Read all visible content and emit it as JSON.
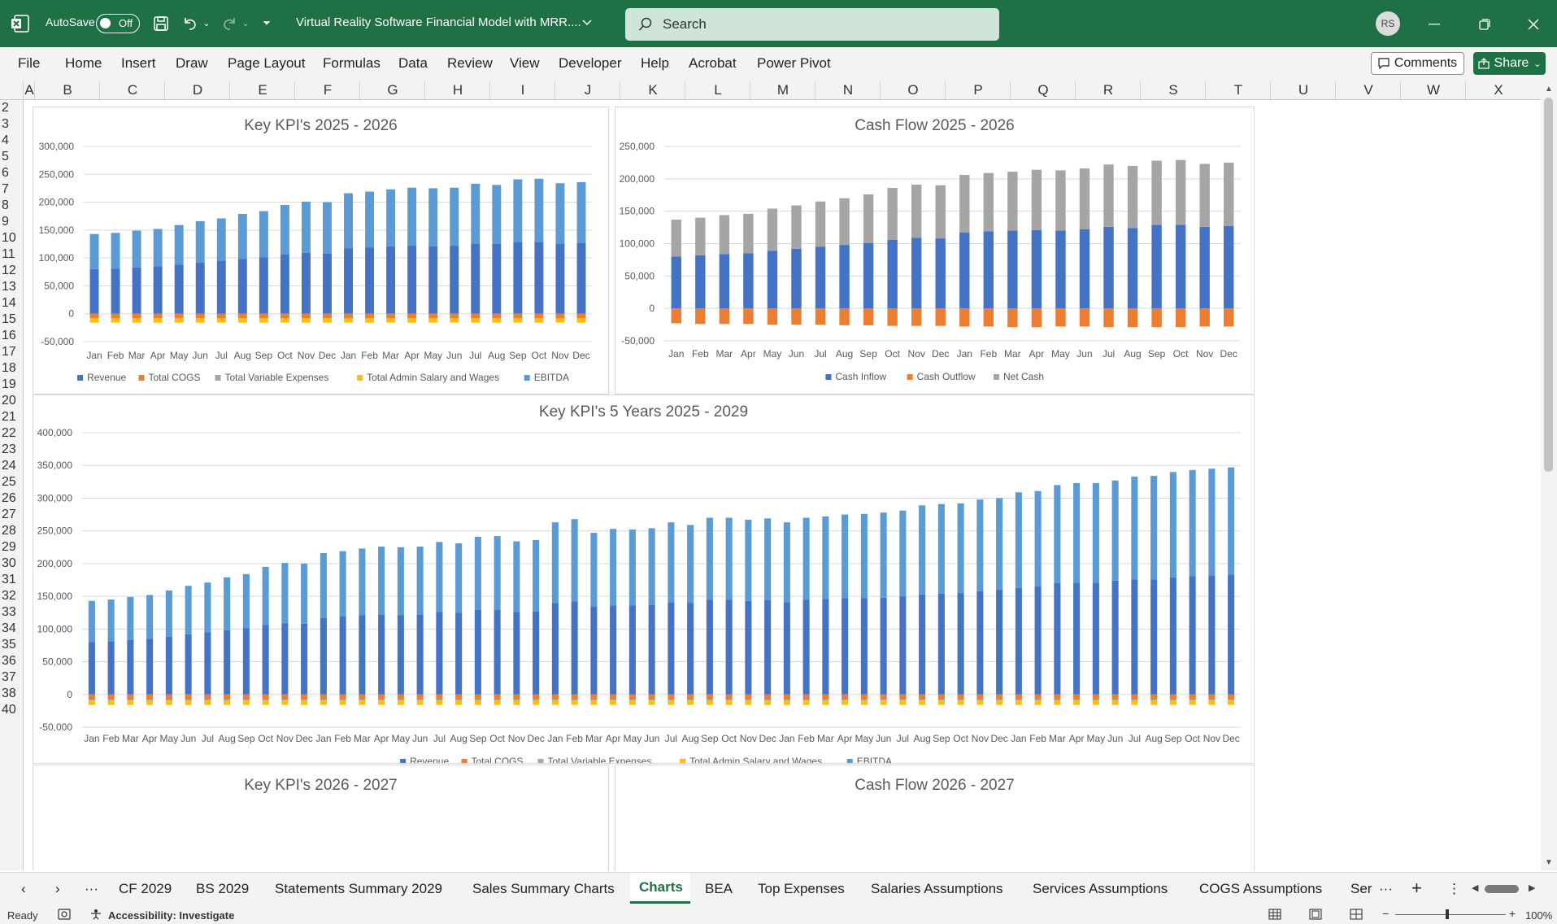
{
  "titlebar": {
    "autosave_label": "AutoSave",
    "autosave_state": "Off",
    "file_title": "Virtual Reality Software Financial Model with MRR....",
    "search_placeholder": "Search",
    "avatar_initials": "RS",
    "accent_color": "#1f7145"
  },
  "menu": {
    "items": [
      "File",
      "Home",
      "Insert",
      "Draw",
      "Page Layout",
      "Formulas",
      "Data",
      "Review",
      "View",
      "Developer",
      "Help",
      "Acrobat",
      "Power Pivot"
    ],
    "comments_label": "Comments",
    "share_label": "Share"
  },
  "columns": [
    "A",
    "B",
    "C",
    "D",
    "E",
    "F",
    "G",
    "H",
    "I",
    "J",
    "K",
    "L",
    "M",
    "N",
    "O",
    "P",
    "Q",
    "R",
    "S",
    "T",
    "U",
    "V",
    "W",
    "X"
  ],
  "rows": [
    "2",
    "3",
    "4",
    "5",
    "6",
    "7",
    "8",
    "9",
    "10",
    "11",
    "12",
    "13",
    "14",
    "15",
    "16",
    "17",
    "18",
    "19",
    "20",
    "21",
    "22",
    "23",
    "24",
    "25",
    "26",
    "27",
    "28",
    "29",
    "30",
    "31",
    "32",
    "33",
    "34",
    "35",
    "36",
    "37",
    "38",
    "40"
  ],
  "tabs": {
    "items": [
      "CF 2029",
      "BS 2029",
      "Statements Summary 2029",
      "Sales Summary Charts",
      "Charts",
      "BEA",
      "Top Expenses",
      "Salaries Assumptions",
      "Services Assumptions",
      "COGS Assumptions",
      "Ser"
    ],
    "active": "Charts"
  },
  "status": {
    "ready": "Ready",
    "accessibility": "Accessibility: Investigate",
    "zoom": "100%"
  },
  "colors": {
    "revenue": "#4472c4",
    "cogs": "#ed7d31",
    "variable": "#a5a5a5",
    "admin": "#ffc000",
    "ebitda": "#5b9bd5"
  },
  "chart_data": [
    {
      "type": "bar",
      "title": "Key KPI's 2025 - 2026",
      "categories": [
        "Jan",
        "Feb",
        "Mar",
        "Apr",
        "May",
        "Jun",
        "Jul",
        "Aug",
        "Sep",
        "Oct",
        "Nov",
        "Dec",
        "Jan",
        "Feb",
        "Mar",
        "Apr",
        "May",
        "Jun",
        "Jul",
        "Aug",
        "Sep",
        "Oct",
        "Nov",
        "Dec"
      ],
      "ylim": [
        -50000,
        300000
      ],
      "yticks": [
        -50000,
        0,
        50000,
        100000,
        150000,
        200000,
        250000,
        300000
      ],
      "ytick_labels": [
        "-50,000",
        "0",
        "50,000",
        "100,000",
        "150,000",
        "200,000",
        "250,000",
        "300,000"
      ],
      "legend": "bottom",
      "series": [
        {
          "name": "Revenue",
          "values": [
            80000,
            81000,
            83000,
            85000,
            88000,
            92000,
            95000,
            98000,
            101000,
            106000,
            109000,
            108000,
            117000,
            119000,
            121000,
            122000,
            121000,
            122000,
            126000,
            125000,
            129000,
            129000,
            126000,
            127000
          ]
        },
        {
          "name": "Total COGS",
          "values": [
            -8000,
            -8000,
            -8000,
            -8000,
            -8000,
            -8000,
            -8000,
            -8000,
            -8000,
            -8000,
            -8000,
            -8000,
            -8000,
            -8000,
            -8000,
            -8000,
            -8000,
            -8000,
            -8000,
            -8000,
            -8000,
            -8000,
            -8000,
            -8000
          ]
        },
        {
          "name": "Total Variable Expenses",
          "values": [
            -1000,
            -1000,
            -1000,
            -1000,
            -1000,
            -1000,
            -1000,
            -1000,
            -1000,
            -1000,
            -1000,
            -1000,
            -1000,
            -1000,
            -1000,
            -1000,
            -1000,
            -1000,
            -1000,
            -1000,
            -1000,
            -1000,
            -1000,
            -1000
          ]
        },
        {
          "name": "Total Admin Salary and Wages",
          "values": [
            -7000,
            -7000,
            -7000,
            -7000,
            -7000,
            -7000,
            -7000,
            -7000,
            -7000,
            -7000,
            -7000,
            -7000,
            -7000,
            -7000,
            -7000,
            -7000,
            -7000,
            -7000,
            -7000,
            -7000,
            -7000,
            -7000,
            -7000,
            -7000
          ]
        },
        {
          "name": "EBITDA",
          "values": [
            63000,
            64000,
            66000,
            67000,
            71000,
            74000,
            76000,
            81000,
            83000,
            89000,
            92000,
            92000,
            99000,
            100000,
            102000,
            104000,
            104000,
            104000,
            107000,
            106000,
            112000,
            113000,
            108000,
            109000
          ]
        }
      ]
    },
    {
      "type": "bar",
      "title": "Cash Flow 2025 - 2026",
      "categories": [
        "Jan",
        "Feb",
        "Mar",
        "Apr",
        "May",
        "Jun",
        "Jul",
        "Aug",
        "Sep",
        "Oct",
        "Nov",
        "Dec",
        "Jan",
        "Feb",
        "Mar",
        "Apr",
        "May",
        "Jun",
        "Jul",
        "Aug",
        "Sep",
        "Oct",
        "Nov",
        "Dec"
      ],
      "ylim": [
        -50000,
        250000
      ],
      "yticks": [
        -50000,
        0,
        50000,
        100000,
        150000,
        200000,
        250000
      ],
      "ytick_labels": [
        "-50,000",
        "0",
        "50,000",
        "100,000",
        "150,000",
        "200,000",
        "250,000"
      ],
      "legend": "bottom",
      "series": [
        {
          "name": "Cash Inflow",
          "values": [
            80000,
            82000,
            84000,
            85000,
            89000,
            92000,
            95000,
            98000,
            101000,
            106000,
            109000,
            108000,
            117000,
            119000,
            120000,
            121000,
            120000,
            122000,
            126000,
            124000,
            129000,
            129000,
            126000,
            127000
          ]
        },
        {
          "name": "Cash Outflow",
          "values": [
            -23000,
            -24000,
            -24000,
            -24000,
            -25000,
            -25000,
            -25000,
            -26000,
            -26000,
            -27000,
            -27000,
            -27000,
            -28000,
            -28000,
            -29000,
            -29000,
            -28000,
            -28000,
            -29000,
            -29000,
            -29000,
            -29000,
            -28000,
            -28000
          ]
        },
        {
          "name": "Net Cash",
          "values": [
            57000,
            58000,
            60000,
            61000,
            65000,
            67000,
            70000,
            72000,
            75000,
            80000,
            82000,
            82000,
            89000,
            90000,
            91000,
            93000,
            93000,
            94000,
            96000,
            96000,
            99000,
            100000,
            97000,
            98000
          ]
        }
      ]
    },
    {
      "type": "bar",
      "title": "Key KPI's 5 Years 2025 - 2029",
      "categories": [
        "Jan",
        "Feb",
        "Mar",
        "Apr",
        "May",
        "Jun",
        "Jul",
        "Aug",
        "Sep",
        "Oct",
        "Nov",
        "Dec",
        "Jan",
        "Feb",
        "Mar",
        "Apr",
        "May",
        "Jun",
        "Jul",
        "Aug",
        "Sep",
        "Oct",
        "Nov",
        "Dec",
        "Jan",
        "Feb",
        "Mar",
        "Apr",
        "May",
        "Jun",
        "Jul",
        "Aug",
        "Sep",
        "Oct",
        "Nov",
        "Dec",
        "Jan",
        "Feb",
        "Mar",
        "Apr",
        "May",
        "Jun",
        "Jul",
        "Aug",
        "Sep",
        "Oct",
        "Nov",
        "Dec",
        "Jan",
        "Feb",
        "Mar",
        "Apr",
        "May",
        "Jun",
        "Jul",
        "Aug",
        "Sep",
        "Oct",
        "Nov",
        "Dec"
      ],
      "ylim": [
        -50000,
        400000
      ],
      "yticks": [
        -50000,
        0,
        50000,
        100000,
        150000,
        200000,
        250000,
        300000,
        350000,
        400000
      ],
      "ytick_labels": [
        "-50,000",
        "0",
        "50,000",
        "100,000",
        "150,000",
        "200,000",
        "250,000",
        "300,000",
        "350,000",
        "400,000"
      ],
      "legend": "bottom",
      "series": [
        {
          "name": "Revenue",
          "values": [
            80000,
            81000,
            83000,
            85000,
            88000,
            92000,
            95000,
            98000,
            101000,
            106000,
            109000,
            108000,
            117000,
            119000,
            121000,
            122000,
            121000,
            122000,
            126000,
            125000,
            129000,
            129000,
            126000,
            127000,
            140000,
            142000,
            134000,
            136000,
            136000,
            137000,
            141000,
            140000,
            145000,
            145000,
            143000,
            144000,
            141000,
            145000,
            146000,
            147000,
            147000,
            148000,
            150000,
            153000,
            154000,
            155000,
            158000,
            160000,
            163000,
            165000,
            170000,
            171000,
            171000,
            174000,
            176000,
            176000,
            179000,
            181000,
            182000,
            183000
          ]
        },
        {
          "name": "Total COGS",
          "values": [
            -8000,
            -8000,
            -8000,
            -8000,
            -8000,
            -8000,
            -8000,
            -8000,
            -8000,
            -8000,
            -8000,
            -8000,
            -8000,
            -8000,
            -8000,
            -8000,
            -8000,
            -8000,
            -8000,
            -8000,
            -8000,
            -8000,
            -8000,
            -8000,
            -8000,
            -8000,
            -8000,
            -8000,
            -8000,
            -8000,
            -8000,
            -8000,
            -8000,
            -8000,
            -8000,
            -8000,
            -8000,
            -8000,
            -8000,
            -8000,
            -8000,
            -8000,
            -8000,
            -8000,
            -8000,
            -8000,
            -8000,
            -8000,
            -8000,
            -8000,
            -8000,
            -8000,
            -8000,
            -8000,
            -8000,
            -8000,
            -8000,
            -8000,
            -8000,
            -8000
          ]
        },
        {
          "name": "Total Variable Expenses",
          "values": [
            -1000,
            -1000,
            -1000,
            -1000,
            -1000,
            -1000,
            -1000,
            -1000,
            -1000,
            -1000,
            -1000,
            -1000,
            -1000,
            -1000,
            -1000,
            -1000,
            -1000,
            -1000,
            -1000,
            -1000,
            -1000,
            -1000,
            -1000,
            -1000,
            -1000,
            -1000,
            -1000,
            -1000,
            -1000,
            -1000,
            -1000,
            -1000,
            -1000,
            -1000,
            -1000,
            -1000,
            -1000,
            -1000,
            -1000,
            -1000,
            -1000,
            -1000,
            -1000,
            -1000,
            -1000,
            -1000,
            -1000,
            -1000,
            -1000,
            -1000,
            -1000,
            -1000,
            -1000,
            -1000,
            -1000,
            -1000,
            -1000,
            -1000,
            -1000,
            -1000
          ]
        },
        {
          "name": "Total Admin Salary and Wages",
          "values": [
            -7000,
            -7000,
            -7000,
            -7000,
            -7000,
            -7000,
            -7000,
            -7000,
            -7000,
            -7000,
            -7000,
            -7000,
            -7000,
            -7000,
            -7000,
            -7000,
            -7000,
            -7000,
            -7000,
            -7000,
            -7000,
            -7000,
            -7000,
            -7000,
            -7000,
            -7000,
            -7000,
            -7000,
            -7000,
            -7000,
            -7000,
            -7000,
            -7000,
            -7000,
            -7000,
            -7000,
            -7000,
            -7000,
            -7000,
            -7000,
            -7000,
            -7000,
            -7000,
            -7000,
            -7000,
            -7000,
            -7000,
            -7000,
            -7000,
            -7000,
            -7000,
            -7000,
            -7000,
            -7000,
            -7000,
            -7000,
            -7000,
            -7000,
            -7000,
            -7000
          ]
        },
        {
          "name": "EBITDA",
          "values": [
            63000,
            64000,
            66000,
            67000,
            71000,
            74000,
            76000,
            81000,
            83000,
            89000,
            92000,
            92000,
            99000,
            100000,
            102000,
            104000,
            104000,
            104000,
            107000,
            106000,
            112000,
            113000,
            108000,
            109000,
            123000,
            126000,
            113000,
            117000,
            116000,
            117000,
            122000,
            119000,
            125000,
            125000,
            124000,
            125000,
            122000,
            125000,
            126000,
            128000,
            129000,
            130000,
            131000,
            136000,
            137000,
            137000,
            140000,
            140000,
            146000,
            146000,
            150000,
            152000,
            152000,
            153000,
            157000,
            158000,
            161000,
            162000,
            163000,
            164000
          ]
        }
      ]
    },
    {
      "type": "bar",
      "title": "Key KPI's 2026 - 2027"
    },
    {
      "type": "bar",
      "title": "Cash Flow 2026 - 2027"
    }
  ]
}
